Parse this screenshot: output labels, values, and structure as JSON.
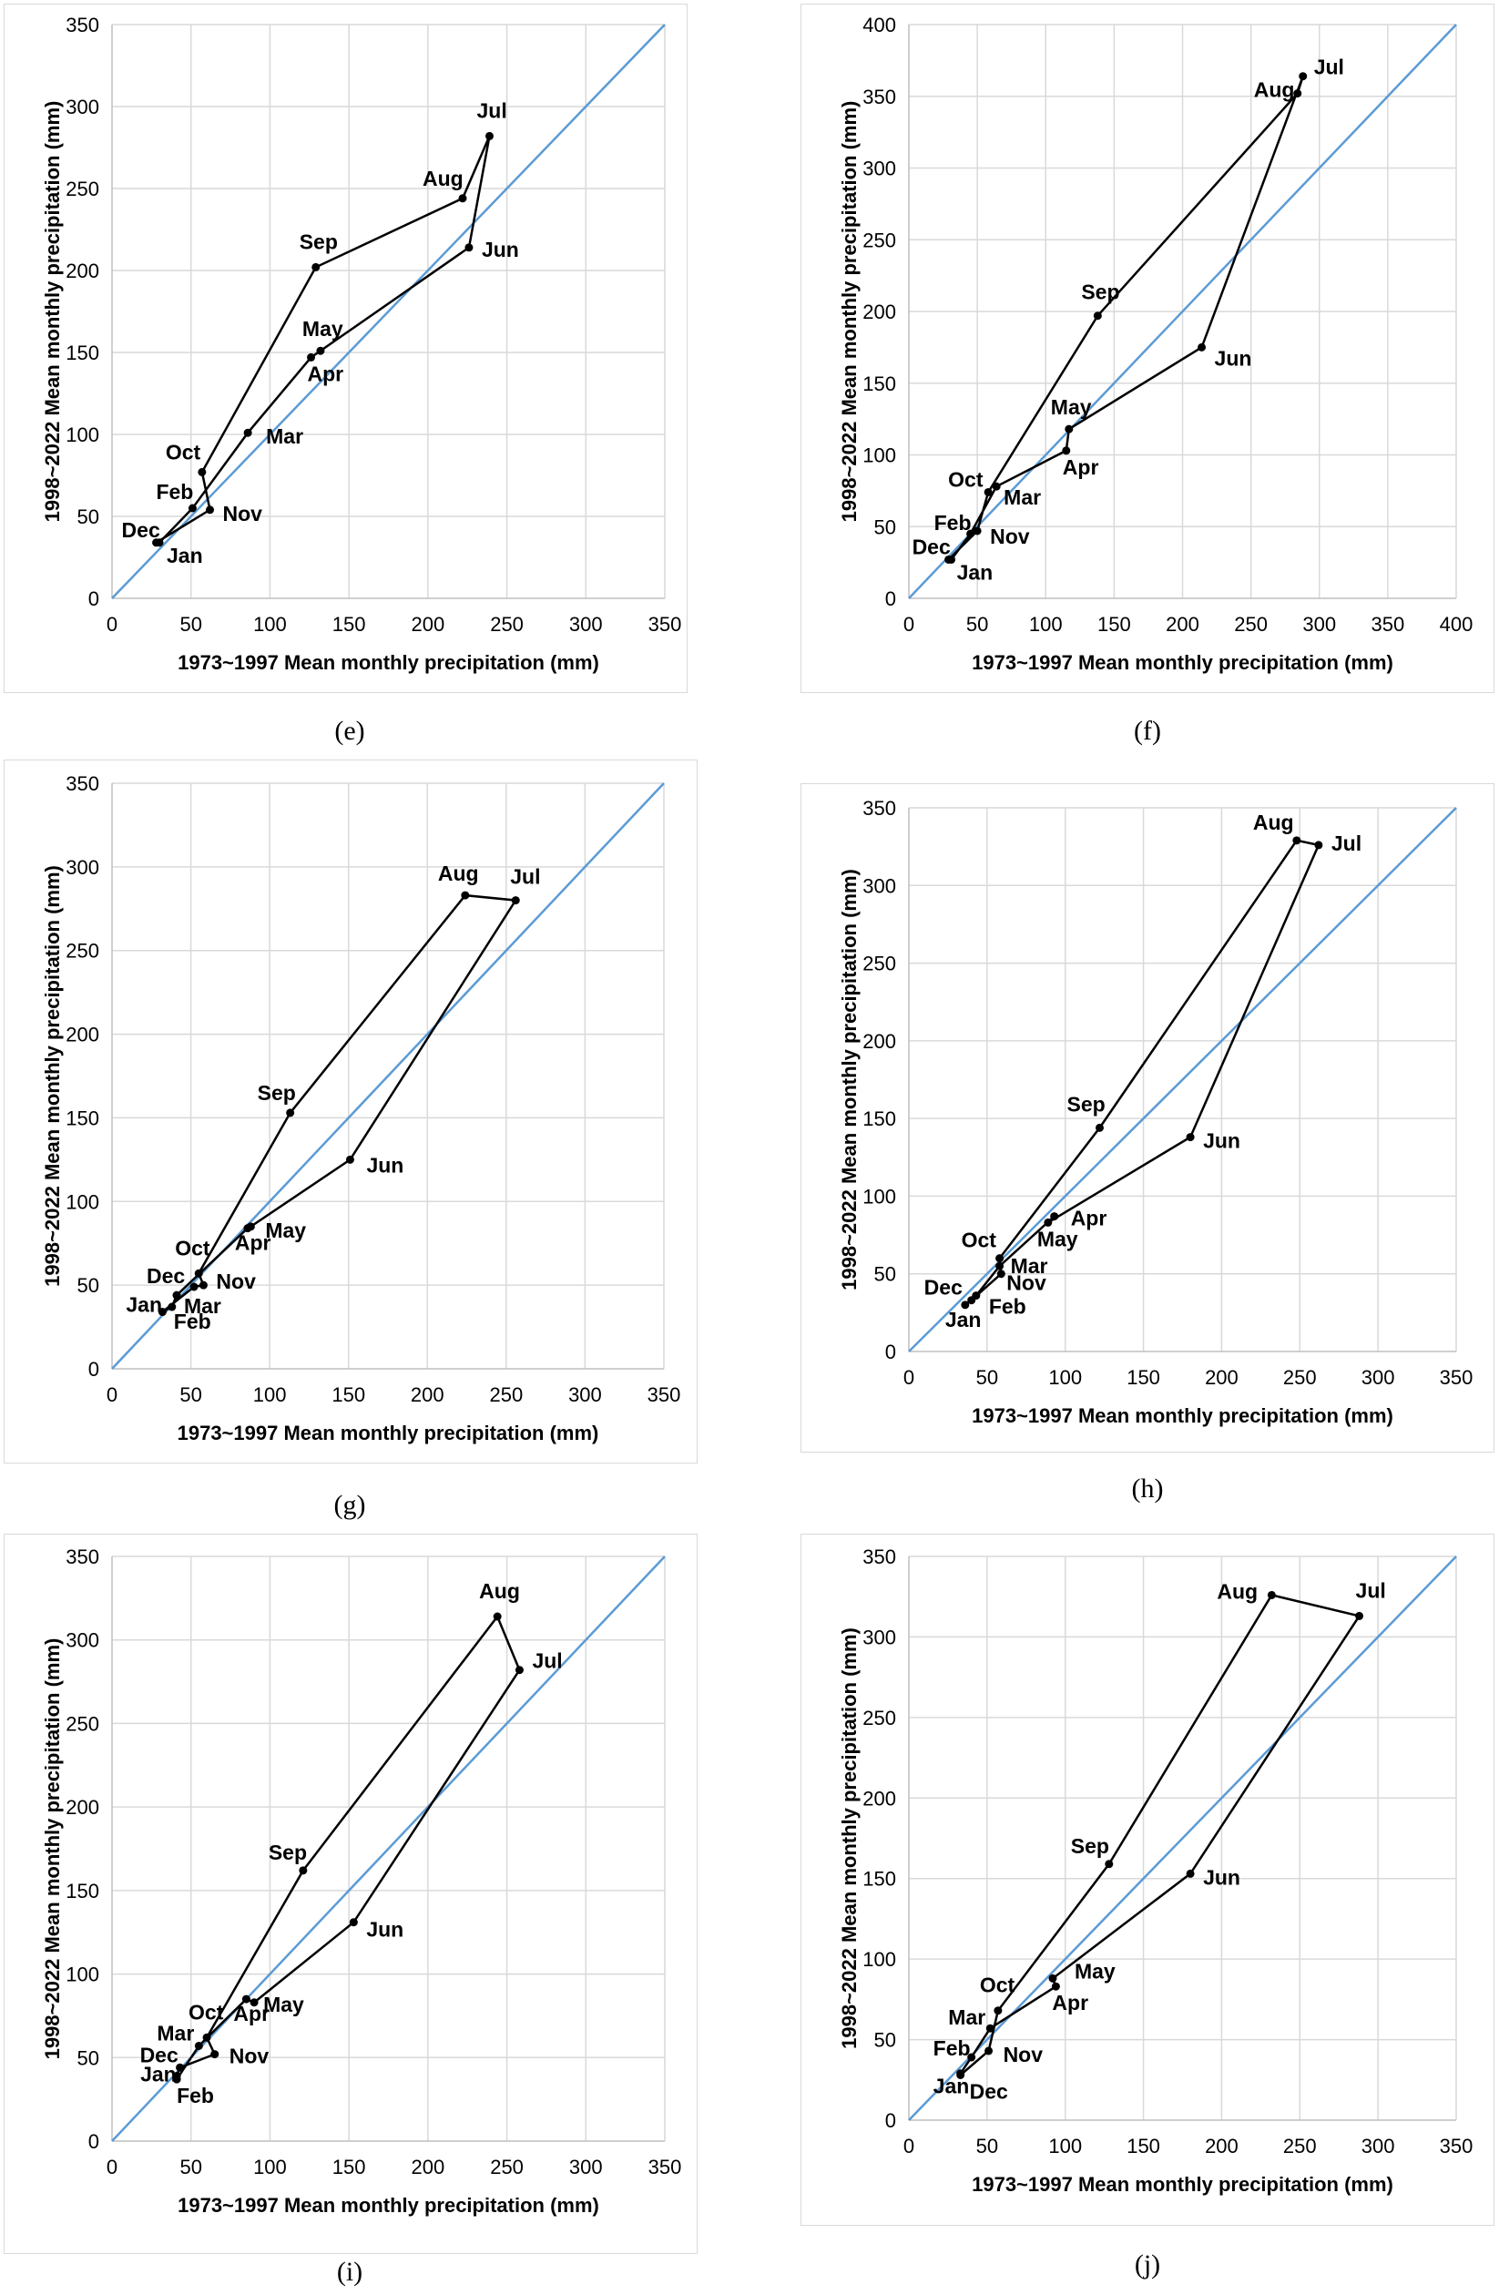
{
  "chart_data": [
    {
      "caption": "(e)",
      "type": "line",
      "xlabel": "1973~1997 Mean monthly precipitation (mm)",
      "ylabel": "1998~2022 Mean monthly precipitation (mm)",
      "xlim": [
        0,
        350
      ],
      "ylim": [
        0,
        350
      ],
      "xticks": [
        0,
        50,
        100,
        150,
        200,
        250,
        300,
        350
      ],
      "yticks": [
        0,
        50,
        100,
        150,
        200,
        250,
        300,
        350
      ],
      "series": [
        {
          "values": [
            [
              0,
              0
            ],
            [
              350,
              350
            ]
          ]
        },
        {
          "values": [
            [
              30,
              34
            ],
            [
              51,
              55
            ],
            [
              86,
              101
            ],
            [
              126,
              147
            ],
            [
              132,
              151
            ],
            [
              226,
              214
            ],
            [
              239,
              282
            ],
            [
              222,
              244
            ],
            [
              129,
              202
            ],
            [
              57,
              77
            ],
            [
              62,
              54
            ],
            [
              28,
              34
            ]
          ]
        }
      ],
      "labels": [
        {
          "text": "Jan",
          "x": 30,
          "y": 34,
          "dx": 8,
          "dy": 22
        },
        {
          "text": "Feb",
          "x": 51,
          "y": 55,
          "dx": -40,
          "dy": -10
        },
        {
          "text": "Mar",
          "x": 86,
          "y": 101,
          "dx": 20,
          "dy": 12
        },
        {
          "text": "Apr",
          "x": 126,
          "y": 147,
          "dx": -4,
          "dy": 26
        },
        {
          "text": "May",
          "x": 132,
          "y": 151,
          "dx": -20,
          "dy": -16
        },
        {
          "text": "Jun",
          "x": 226,
          "y": 214,
          "dx": 14,
          "dy": 10
        },
        {
          "text": "Jul",
          "x": 239,
          "y": 282,
          "dx": -14,
          "dy": -20
        },
        {
          "text": "Aug",
          "x": 222,
          "y": 244,
          "dx": -44,
          "dy": -14
        },
        {
          "text": "Sep",
          "x": 129,
          "y": 202,
          "dx": -18,
          "dy": -20
        },
        {
          "text": "Oct",
          "x": 57,
          "y": 77,
          "dx": -40,
          "dy": -14
        },
        {
          "text": "Nov",
          "x": 62,
          "y": 54,
          "dx": 14,
          "dy": 12
        },
        {
          "text": "Dec",
          "x": 28,
          "y": 34,
          "dx": -38,
          "dy": -6
        }
      ]
    },
    {
      "caption": "(f)",
      "type": "line",
      "xlabel": "1973~1997 Mean monthly precipitation (mm)",
      "ylabel": "1998~2022 Mean monthly precipitation (mm)",
      "xlim": [
        0,
        400
      ],
      "ylim": [
        0,
        400
      ],
      "xticks": [
        0,
        50,
        100,
        150,
        200,
        250,
        300,
        350,
        400
      ],
      "yticks": [
        0,
        50,
        100,
        150,
        200,
        250,
        300,
        350,
        400
      ],
      "series": [
        {
          "values": [
            [
              0,
              0
            ],
            [
              400,
              400
            ]
          ]
        },
        {
          "values": [
            [
              31,
              27
            ],
            [
              45,
              45
            ],
            [
              64,
              78
            ],
            [
              115,
              103
            ],
            [
              117,
              118
            ],
            [
              214,
              175
            ],
            [
              288,
              364
            ],
            [
              284,
              352
            ],
            [
              138,
              197
            ],
            [
              58,
              74
            ],
            [
              50,
              47
            ],
            [
              29,
              27
            ]
          ]
        }
      ],
      "labels": [
        {
          "text": "Jan",
          "x": 31,
          "y": 27,
          "dx": 6,
          "dy": 22
        },
        {
          "text": "Feb",
          "x": 45,
          "y": 45,
          "dx": -40,
          "dy": -4
        },
        {
          "text": "Mar",
          "x": 64,
          "y": 78,
          "dx": 8,
          "dy": 20
        },
        {
          "text": "Apr",
          "x": 115,
          "y": 103,
          "dx": -4,
          "dy": 26
        },
        {
          "text": "May",
          "x": 117,
          "y": 118,
          "dx": -20,
          "dy": -16
        },
        {
          "text": "Jun",
          "x": 214,
          "y": 175,
          "dx": 14,
          "dy": 20
        },
        {
          "text": "Jul",
          "x": 288,
          "y": 364,
          "dx": 12,
          "dy": -2
        },
        {
          "text": "Aug",
          "x": 284,
          "y": 352,
          "dx": -48,
          "dy": 4
        },
        {
          "text": "Sep",
          "x": 138,
          "y": 197,
          "dx": -18,
          "dy": -18
        },
        {
          "text": "Oct",
          "x": 58,
          "y": 74,
          "dx": -44,
          "dy": -6
        },
        {
          "text": "Nov",
          "x": 50,
          "y": 47,
          "dx": 14,
          "dy": 14
        },
        {
          "text": "Dec",
          "x": 29,
          "y": 27,
          "dx": -40,
          "dy": -6
        }
      ]
    },
    {
      "caption": "(g)",
      "type": "line",
      "xlabel": "1973~1997 Mean monthly precipitation (mm)",
      "ylabel": "1998~2022 Mean monthly precipitation (mm)",
      "xlim": [
        0,
        350
      ],
      "ylim": [
        0,
        350
      ],
      "xticks": [
        0,
        50,
        100,
        150,
        200,
        250,
        300,
        350
      ],
      "yticks": [
        0,
        50,
        100,
        150,
        200,
        250,
        300,
        350
      ],
      "series": [
        {
          "values": [
            [
              0,
              0
            ],
            [
              350,
              350
            ]
          ]
        },
        {
          "values": [
            [
              32,
              34
            ],
            [
              38,
              37
            ],
            [
              41,
              44
            ],
            [
              86,
              84
            ],
            [
              88,
              85
            ],
            [
              151,
              125
            ],
            [
              256,
              280
            ],
            [
              224,
              283
            ],
            [
              113,
              153
            ],
            [
              55,
              57
            ],
            [
              58,
              50
            ],
            [
              52,
              49
            ]
          ]
        }
      ],
      "labels": [
        {
          "text": "Jan",
          "x": 32,
          "y": 34,
          "dx": -40,
          "dy": 0
        },
        {
          "text": "Feb",
          "x": 38,
          "y": 37,
          "dx": 2,
          "dy": 24
        },
        {
          "text": "Mar",
          "x": 41,
          "y": 44,
          "dx": 8,
          "dy": 20
        },
        {
          "text": "Apr",
          "x": 86,
          "y": 84,
          "dx": -14,
          "dy": 24
        },
        {
          "text": "May",
          "x": 88,
          "y": 85,
          "dx": 16,
          "dy": 12
        },
        {
          "text": "Jun",
          "x": 151,
          "y": 125,
          "dx": 18,
          "dy": 14
        },
        {
          "text": "Jul",
          "x": 256,
          "y": 280,
          "dx": -6,
          "dy": -18
        },
        {
          "text": "Aug",
          "x": 224,
          "y": 283,
          "dx": -30,
          "dy": -16
        },
        {
          "text": "Sep",
          "x": 113,
          "y": 153,
          "dx": -36,
          "dy": -14
        },
        {
          "text": "Oct",
          "x": 55,
          "y": 57,
          "dx": -26,
          "dy": -20
        },
        {
          "text": "Nov",
          "x": 58,
          "y": 50,
          "dx": 14,
          "dy": 4
        },
        {
          "text": "Dec",
          "x": 52,
          "y": 49,
          "dx": -52,
          "dy": -4
        }
      ]
    },
    {
      "caption": "(h)",
      "type": "line",
      "xlabel": "1973~1997 Mean monthly precipitation (mm)",
      "ylabel": "1998~2022 Mean monthly precipitation (mm)",
      "xlim": [
        0,
        350
      ],
      "ylim": [
        0,
        350
      ],
      "xticks": [
        0,
        50,
        100,
        150,
        200,
        250,
        300,
        350
      ],
      "yticks": [
        0,
        50,
        100,
        150,
        200,
        250,
        300,
        350
      ],
      "series": [
        {
          "values": [
            [
              0,
              0
            ],
            [
              350,
              350
            ]
          ]
        },
        {
          "values": [
            [
              36,
              30
            ],
            [
              43,
              36
            ],
            [
              58,
              55
            ],
            [
              93,
              87
            ],
            [
              89,
              83
            ],
            [
              180,
              138
            ],
            [
              262,
              326
            ],
            [
              248,
              329
            ],
            [
              122,
              144
            ],
            [
              58,
              60
            ],
            [
              59,
              50
            ],
            [
              40,
              33
            ]
          ]
        }
      ],
      "labels": [
        {
          "text": "Jan",
          "x": 36,
          "y": 30,
          "dx": -22,
          "dy": 24
        },
        {
          "text": "Feb",
          "x": 43,
          "y": 36,
          "dx": 14,
          "dy": 20
        },
        {
          "text": "Mar",
          "x": 58,
          "y": 55,
          "dx": 12,
          "dy": 8
        },
        {
          "text": "Apr",
          "x": 93,
          "y": 87,
          "dx": 18,
          "dy": 10
        },
        {
          "text": "May",
          "x": 89,
          "y": 83,
          "dx": -12,
          "dy": 26
        },
        {
          "text": "Jun",
          "x": 180,
          "y": 138,
          "dx": 14,
          "dy": 12
        },
        {
          "text": "Jul",
          "x": 262,
          "y": 326,
          "dx": 14,
          "dy": 6
        },
        {
          "text": "Aug",
          "x": 248,
          "y": 329,
          "dx": -48,
          "dy": -12
        },
        {
          "text": "Sep",
          "x": 122,
          "y": 144,
          "dx": -36,
          "dy": -18
        },
        {
          "text": "Oct",
          "x": 58,
          "y": 60,
          "dx": -42,
          "dy": -12
        },
        {
          "text": "Nov",
          "x": 59,
          "y": 50,
          "dx": 6,
          "dy": 18
        },
        {
          "text": "Dec",
          "x": 40,
          "y": 33,
          "dx": -52,
          "dy": -6
        }
      ]
    },
    {
      "caption": "(i)",
      "type": "line",
      "xlabel": "1973~1997 Mean monthly precipitation (mm)",
      "ylabel": "1998~2022 Mean monthly precipitation (mm)",
      "xlim": [
        0,
        350
      ],
      "ylim": [
        0,
        350
      ],
      "xticks": [
        0,
        50,
        100,
        150,
        200,
        250,
        300,
        350
      ],
      "yticks": [
        0,
        50,
        100,
        150,
        200,
        250,
        300,
        350
      ],
      "series": [
        {
          "values": [
            [
              0,
              0
            ],
            [
              350,
              350
            ]
          ]
        },
        {
          "values": [
            [
              41,
              39
            ],
            [
              41,
              37
            ],
            [
              55,
              57
            ],
            [
              85,
              85
            ],
            [
              90,
              83
            ],
            [
              153,
              131
            ],
            [
              258,
              282
            ],
            [
              244,
              314
            ],
            [
              121,
              162
            ],
            [
              60,
              62
            ],
            [
              65,
              52
            ],
            [
              43,
              44
            ]
          ]
        }
      ],
      "labels": [
        {
          "text": "Jan",
          "x": 41,
          "y": 39,
          "dx": -40,
          "dy": 6
        },
        {
          "text": "Feb",
          "x": 41,
          "y": 37,
          "dx": 0,
          "dy": 26
        },
        {
          "text": "Mar",
          "x": 55,
          "y": 57,
          "dx": -46,
          "dy": -6
        },
        {
          "text": "Apr",
          "x": 85,
          "y": 85,
          "dx": -14,
          "dy": 24
        },
        {
          "text": "May",
          "x": 90,
          "y": 83,
          "dx": 10,
          "dy": 10
        },
        {
          "text": "Jun",
          "x": 153,
          "y": 131,
          "dx": 14,
          "dy": 16
        },
        {
          "text": "Jul",
          "x": 258,
          "y": 282,
          "dx": 14,
          "dy": -2
        },
        {
          "text": "Aug",
          "x": 244,
          "y": 314,
          "dx": -20,
          "dy": -20
        },
        {
          "text": "Sep",
          "x": 121,
          "y": 162,
          "dx": -38,
          "dy": -12
        },
        {
          "text": "Oct",
          "x": 60,
          "y": 62,
          "dx": -20,
          "dy": -20
        },
        {
          "text": "Nov",
          "x": 65,
          "y": 52,
          "dx": 16,
          "dy": 10
        },
        {
          "text": "Dec",
          "x": 43,
          "y": 44,
          "dx": -44,
          "dy": -6
        }
      ]
    },
    {
      "caption": "(j)",
      "type": "line",
      "xlabel": "1973~1997 Mean monthly precipitation (mm)",
      "ylabel": "1998~2022 Mean monthly precipitation (mm)",
      "xlim": [
        0,
        350
      ],
      "ylim": [
        0,
        350
      ],
      "xticks": [
        0,
        50,
        100,
        150,
        200,
        250,
        300,
        350
      ],
      "yticks": [
        0,
        50,
        100,
        150,
        200,
        250,
        300,
        350
      ],
      "series": [
        {
          "values": [
            [
              0,
              0
            ],
            [
              350,
              350
            ]
          ]
        },
        {
          "values": [
            [
              33,
              29
            ],
            [
              40,
              39
            ],
            [
              52,
              57
            ],
            [
              94,
              83
            ],
            [
              92,
              88
            ],
            [
              180,
              153
            ],
            [
              288,
              313
            ],
            [
              232,
              326
            ],
            [
              128,
              159
            ],
            [
              57,
              68
            ],
            [
              51,
              43
            ],
            [
              33,
              28
            ]
          ]
        }
      ],
      "labels": [
        {
          "text": "Jan",
          "x": 33,
          "y": 29,
          "dx": -30,
          "dy": 22
        },
        {
          "text": "Feb",
          "x": 40,
          "y": 39,
          "dx": -42,
          "dy": -2
        },
        {
          "text": "Mar",
          "x": 52,
          "y": 57,
          "dx": -46,
          "dy": -4
        },
        {
          "text": "Apr",
          "x": 94,
          "y": 83,
          "dx": -4,
          "dy": 26
        },
        {
          "text": "May",
          "x": 92,
          "y": 88,
          "dx": 24,
          "dy": 0
        },
        {
          "text": "Jun",
          "x": 180,
          "y": 153,
          "dx": 14,
          "dy": 12
        },
        {
          "text": "Jul",
          "x": 288,
          "y": 313,
          "dx": -4,
          "dy": -20
        },
        {
          "text": "Aug",
          "x": 232,
          "y": 326,
          "dx": -60,
          "dy": 4
        },
        {
          "text": "Sep",
          "x": 128,
          "y": 159,
          "dx": -42,
          "dy": -12
        },
        {
          "text": "Oct",
          "x": 57,
          "y": 68,
          "dx": -20,
          "dy": -20
        },
        {
          "text": "Nov",
          "x": 51,
          "y": 43,
          "dx": 16,
          "dy": 12
        },
        {
          "text": "Dec",
          "x": 33,
          "y": 28,
          "dx": 10,
          "dy": 26
        }
      ]
    }
  ]
}
